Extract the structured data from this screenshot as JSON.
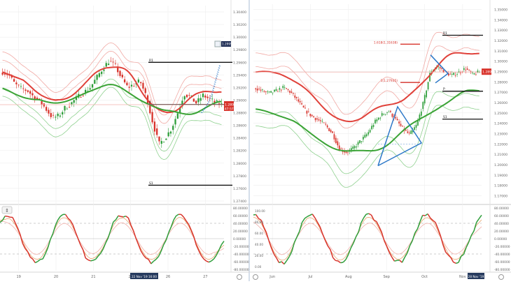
{
  "colors": {
    "up": "#2e9e3a",
    "down": "#d8332b",
    "ma_red": "#e0413a",
    "ma_green": "#3aa335",
    "band_red": "#f1a9a4",
    "band_green": "#8fd18f",
    "level_line": "#111111",
    "fib": "#d8332b",
    "blue": "#2c78c8",
    "price_tag": "#d8332b",
    "grid": "#eeeeee"
  },
  "left": {
    "price_axis": [
      "1.30400",
      "1.30200",
      "1.30000",
      "1.29800",
      "1.29600",
      "1.29400",
      "1.29200",
      "1.29000",
      "1.28800",
      "1.28600",
      "1.28400",
      "1.28200",
      "1.28000",
      "1.27800",
      "1.27600",
      "1.27400"
    ],
    "time_axis": [
      "19",
      "20",
      "21",
      "22",
      "26",
      "27"
    ],
    "time_marker": "22 Nov '19  16:00",
    "levels": [
      {
        "label": "R1",
        "value": 1.296
      },
      {
        "label": "P",
        "value": 1.2893
      },
      {
        "label": "S1",
        "value": 1.2765
      }
    ],
    "price_tag": "1.28928",
    "price_tag2": "47:57",
    "top_tag": "1.29953",
    "osc_axis": [
      "80.00000",
      "60.00000",
      "40.00000",
      "20.00000",
      "0.00000",
      "-20.00000",
      "-40.00000",
      "-60.00000",
      "-80.00000"
    ]
  },
  "right": {
    "price_axis": [
      "1.35000",
      "1.34000",
      "1.33000",
      "1.32000",
      "1.31000",
      "1.30000",
      "1.29000",
      "1.28000",
      "1.27000",
      "1.26000",
      "1.25000",
      "1.24000",
      "1.23000",
      "1.22000",
      "1.21000",
      "1.20000",
      "1.19000",
      "1.18000",
      "1.17000"
    ],
    "time_axis": [
      "Jun",
      "Jul",
      "Aug",
      "Sep",
      "Oct",
      "Nov"
    ],
    "time_marker": "28 Nov '19",
    "levels": [
      {
        "label": "R1",
        "value": 1.325
      },
      {
        "label": "P",
        "value": 1.271
      },
      {
        "label": "S1",
        "value": 1.244
      }
    ],
    "fib_labels": [
      {
        "text": "1.618(1.31638)",
        "value": 1.3164
      },
      {
        "text": "1(1.27935)",
        "value": 1.2794
      }
    ],
    "price_tag": "1.28949",
    "osc_axis_left": [
      "100.00",
      "80.00",
      "60.00",
      "40.00",
      "20.00",
      "0.00"
    ],
    "osc_axis": [
      "80.00000",
      "60.00000",
      "40.00000",
      "20.00000",
      "0.00000",
      "-20.00000",
      "-40.00000",
      "-60.00000",
      "-80.00000"
    ]
  },
  "chart_data": [
    {
      "type": "line",
      "title": "",
      "panel": "left-price (candlestick, hourly)",
      "x": [
        "19",
        "20",
        "21",
        "22",
        "26",
        "27"
      ],
      "ylim": [
        1.274,
        1.305
      ],
      "levels": {
        "R1": 1.296,
        "P": 1.2893,
        "S1": 1.2765
      },
      "last_price": 1.28928,
      "close_series": [
        1.2945,
        1.294,
        1.2925,
        1.2918,
        1.2915,
        1.2905,
        1.2898,
        1.2885,
        1.2872,
        1.2875,
        1.2888,
        1.2895,
        1.2905,
        1.2912,
        1.292,
        1.2935,
        1.295,
        1.2962,
        1.2955,
        1.2935,
        1.292,
        1.2925,
        1.293,
        1.2905,
        1.2865,
        1.283,
        1.284,
        1.2855,
        1.288,
        1.291,
        1.2905,
        1.2895,
        1.2908,
        1.2902,
        1.2896,
        1.2893
      ]
    },
    {
      "type": "line",
      "title": "",
      "panel": "right-price (candlestick, daily)",
      "x": [
        "Jun",
        "Jul",
        "Aug",
        "Sep",
        "Oct",
        "Nov"
      ],
      "ylim": [
        1.165,
        1.355
      ],
      "levels": {
        "R1": 1.325,
        "P": 1.271,
        "S1": 1.244
      },
      "fib": {
        "1.618": 1.31638,
        "1": 1.27935
      },
      "last_price": 1.28949,
      "close_series": [
        1.274,
        1.271,
        1.269,
        1.2715,
        1.2745,
        1.27,
        1.262,
        1.253,
        1.247,
        1.243,
        1.238,
        1.23,
        1.215,
        1.212,
        1.216,
        1.223,
        1.23,
        1.241,
        1.248,
        1.252,
        1.244,
        1.235,
        1.229,
        1.238,
        1.26,
        1.29,
        1.295,
        1.29,
        1.286,
        1.289,
        1.293,
        1.287,
        1.2895
      ]
    }
  ]
}
